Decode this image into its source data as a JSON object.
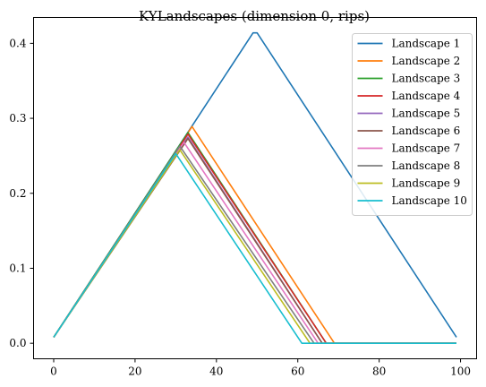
{
  "chart_data": {
    "type": "line",
    "title": "KYLandscapes (dimension 0, rips)",
    "xlabel": "",
    "ylabel": "",
    "xlim": [
      -4.95,
      103.95
    ],
    "ylim": [
      -0.0207,
      0.4345
    ],
    "xticks": [
      0,
      20,
      40,
      60,
      80,
      100
    ],
    "yticks": [
      0.0,
      0.1,
      0.2,
      0.3,
      0.4
    ],
    "ytick_labels": [
      "0.0",
      "0.1",
      "0.2",
      "0.3",
      "0.4"
    ],
    "grid": false,
    "legend": "top-right",
    "series": [
      {
        "name": "Landscape 1",
        "color": "#1f77b4",
        "x": [
          0,
          49,
          50,
          99
        ],
        "y": [
          0.008,
          0.414,
          0.414,
          0.008
        ]
      },
      {
        "name": "Landscape 2",
        "color": "#ff7f0e",
        "x": [
          0,
          34,
          69,
          99
        ],
        "y": [
          0.008,
          0.289,
          0.0,
          0.0
        ]
      },
      {
        "name": "Landscape 3",
        "color": "#2ca02c",
        "x": [
          0,
          33,
          67,
          99
        ],
        "y": [
          0.008,
          0.281,
          0.0,
          0.0
        ]
      },
      {
        "name": "Landscape 4",
        "color": "#d62728",
        "x": [
          0,
          33,
          67,
          99
        ],
        "y": [
          0.008,
          0.279,
          0.0,
          0.0
        ]
      },
      {
        "name": "Landscape 5",
        "color": "#9467bd",
        "x": [
          0,
          33,
          66,
          99
        ],
        "y": [
          0.008,
          0.275,
          0.0,
          0.0
        ]
      },
      {
        "name": "Landscape 6",
        "color": "#8c564b",
        "x": [
          0,
          33,
          66,
          99
        ],
        "y": [
          0.008,
          0.273,
          0.0,
          0.0
        ]
      },
      {
        "name": "Landscape 7",
        "color": "#e377c2",
        "x": [
          0,
          32,
          65,
          99
        ],
        "y": [
          0.008,
          0.268,
          0.0,
          0.0
        ]
      },
      {
        "name": "Landscape 8",
        "color": "#7f7f7f",
        "x": [
          0,
          31,
          64,
          99
        ],
        "y": [
          0.008,
          0.263,
          0.0,
          0.0
        ]
      },
      {
        "name": "Landscape 9",
        "color": "#bcbd22",
        "x": [
          0,
          31,
          63,
          99
        ],
        "y": [
          0.008,
          0.258,
          0.0,
          0.0
        ]
      },
      {
        "name": "Landscape 10",
        "color": "#17becf",
        "x": [
          0,
          30,
          61,
          99
        ],
        "y": [
          0.008,
          0.253,
          0.0,
          0.0
        ]
      }
    ]
  }
}
